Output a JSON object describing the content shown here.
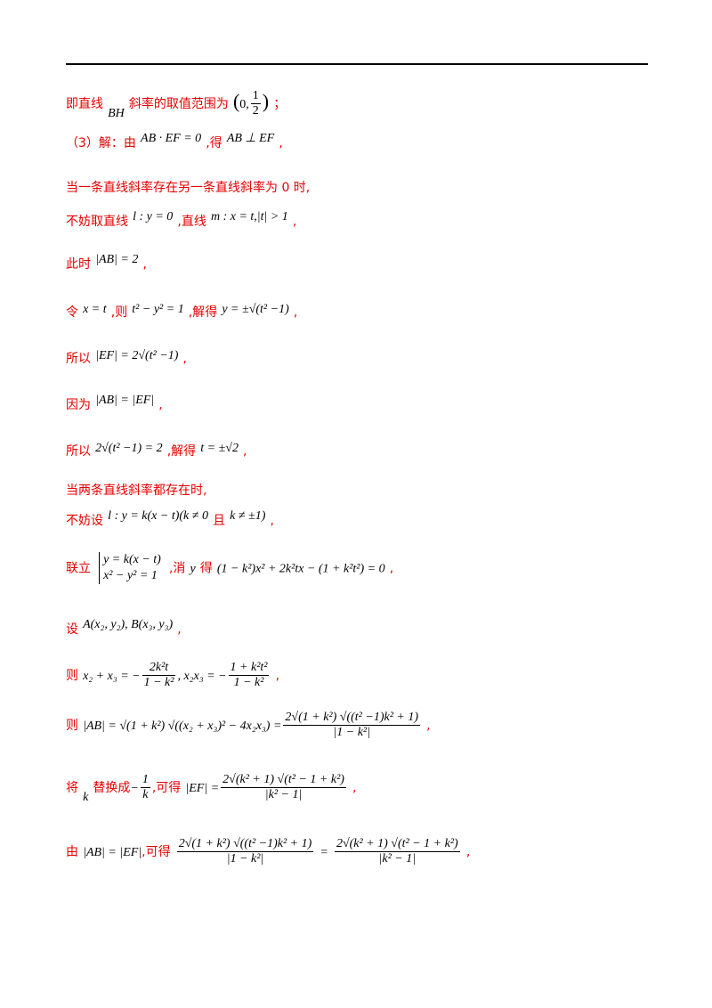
{
  "lines": {
    "l1": {
      "cn_a": "即直线",
      "m_bh": "BH",
      "cn_b": "斜率的取值范围为",
      "range_open": "(",
      "range_zero": "0,",
      "range_num": "1",
      "range_den": "2",
      "range_close": ")",
      "punct": "；"
    },
    "l2": {
      "cn_a": "（3）解：由",
      "m_a": "AB · EF = 0",
      "cn_b": ",得",
      "m_b": "AB ⊥ EF",
      "punct": ","
    },
    "l3": {
      "cn": "当一条直线斜率存在另一条直线斜率为 0 时,"
    },
    "l4": {
      "cn_a": "不妨取直线",
      "m_a": "l : y = 0",
      "cn_b": ",直线",
      "m_b": "m : x = t,|t| > 1",
      "punct": ","
    },
    "l5": {
      "cn_a": "此时",
      "m_a": "|AB| = 2",
      "punct": ","
    },
    "l6": {
      "cn_a": "令",
      "m_a": "x = t",
      "cn_b": ",则",
      "m_b": "t² − y² = 1",
      "cn_c": ",解得",
      "m_c": "y = ±√(t² −1)",
      "punct": ","
    },
    "l7": {
      "cn_a": "所以",
      "m_a": "|EF| = 2√(t² −1)",
      "punct": ","
    },
    "l8": {
      "cn_a": "因为",
      "m_a": "|AB| = |EF|",
      "punct": ","
    },
    "l9": {
      "cn_a": "所以",
      "m_a": "2√(t² −1) = 2",
      "cn_b": ",解得",
      "m_b": "t = ±√2",
      "punct": ","
    },
    "l10": {
      "cn": "当两条直线斜率都存在时,"
    },
    "l11": {
      "cn_a": "不妨设",
      "m_a": "l : y = k(x − t)(k ≠ 0",
      "cn_b": "且",
      "m_b": "k ≠ ±1)",
      "punct": ","
    },
    "l12": {
      "cn_a": "联立",
      "sys1": "y = k(x − t)",
      "sys2": "x² − y² = 1",
      "cn_b": ",消",
      "m_y": "y",
      "cn_c": "得",
      "m_a": "(1 − k²)x² + 2k²tx − (1 + k²t²) = 0",
      "punct": ","
    },
    "l13": {
      "cn_a": "设",
      "m_a": "A(x₂, y₂), B(x₃, y₃)",
      "punct": ","
    },
    "l14": {
      "cn_a": "则",
      "m_a": "x₂ + x₃ = −",
      "f1_num": "2k²t",
      "f1_den": "1 − k²",
      "m_b": ", x₂x₃ = −",
      "f2_num": "1 + k²t²",
      "f2_den": "1 − k²",
      "punct": ","
    },
    "l15": {
      "cn_a": "则",
      "m_a": "|AB| = √(1 + k²) √((x₂ + x₃)² − 4x₂x₃) =",
      "f_num": "2√(1 + k²) √((t² −1)k² + 1)",
      "f_den": "|1 − k²|",
      "punct": ","
    },
    "l16": {
      "cn_a": "将",
      "m_k": "k",
      "cn_b": "替换成",
      "m_neg": "−",
      "f_num": "1",
      "f_den": "k",
      "cn_c": ",可得",
      "m_a": "|EF| =",
      "f2_num": "2√(k² + 1) √(t² − 1 + k²)",
      "f2_den": "|k² − 1|",
      "punct": ","
    },
    "l17": {
      "cn_a": "由",
      "m_a": "|AB| = |EF|",
      "cn_b": ",可得",
      "f1_num": "2√(1 + k²) √((t² −1)k² + 1)",
      "f1_den": "|1 − k²|",
      "eq": "=",
      "f2_num": "2√(k² + 1) √(t² − 1 + k²)",
      "f2_den": "|k² − 1|",
      "punct": ","
    }
  }
}
